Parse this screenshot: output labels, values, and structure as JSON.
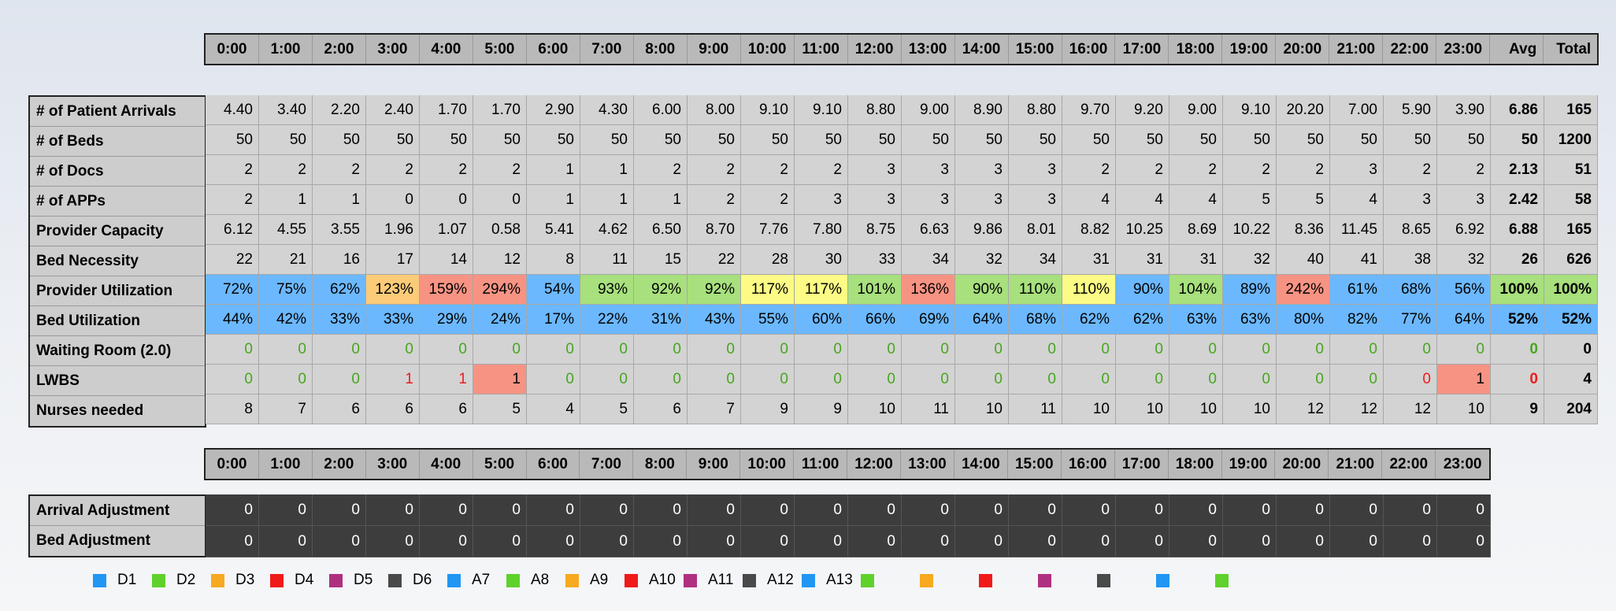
{
  "hours": [
    "0:00",
    "1:00",
    "2:00",
    "3:00",
    "4:00",
    "5:00",
    "6:00",
    "7:00",
    "8:00",
    "9:00",
    "10:00",
    "11:00",
    "12:00",
    "13:00",
    "14:00",
    "15:00",
    "16:00",
    "17:00",
    "18:00",
    "19:00",
    "20:00",
    "21:00",
    "22:00",
    "23:00"
  ],
  "summary_headers": {
    "avg": "Avg",
    "total": "Total"
  },
  "main_table": {
    "rows": [
      {
        "label": "# of Patient Arrivals",
        "values": [
          "4.40",
          "3.40",
          "2.20",
          "2.40",
          "1.70",
          "1.70",
          "2.90",
          "4.30",
          "6.00",
          "8.00",
          "9.10",
          "9.10",
          "8.80",
          "9.00",
          "8.90",
          "8.80",
          "9.70",
          "9.20",
          "9.00",
          "9.10",
          "20.20",
          "7.00",
          "5.90",
          "3.90"
        ],
        "avg": "6.86",
        "total": "165"
      },
      {
        "label": "# of Beds",
        "values": [
          "50",
          "50",
          "50",
          "50",
          "50",
          "50",
          "50",
          "50",
          "50",
          "50",
          "50",
          "50",
          "50",
          "50",
          "50",
          "50",
          "50",
          "50",
          "50",
          "50",
          "50",
          "50",
          "50",
          "50"
        ],
        "avg": "50",
        "total": "1200"
      },
      {
        "label": "# of Docs",
        "values": [
          "2",
          "2",
          "2",
          "2",
          "2",
          "2",
          "1",
          "1",
          "2",
          "2",
          "2",
          "2",
          "3",
          "3",
          "3",
          "3",
          "2",
          "2",
          "2",
          "2",
          "2",
          "3",
          "2",
          "2"
        ],
        "avg": "2.13",
        "total": "51"
      },
      {
        "label": "# of APPs",
        "values": [
          "2",
          "1",
          "1",
          "0",
          "0",
          "0",
          "1",
          "1",
          "1",
          "2",
          "2",
          "3",
          "3",
          "3",
          "3",
          "3",
          "4",
          "4",
          "4",
          "5",
          "5",
          "4",
          "3",
          "3"
        ],
        "avg": "2.42",
        "total": "58"
      },
      {
        "label": "Provider Capacity",
        "values": [
          "6.12",
          "4.55",
          "3.55",
          "1.96",
          "1.07",
          "0.58",
          "5.41",
          "4.62",
          "6.50",
          "8.70",
          "7.76",
          "7.80",
          "8.75",
          "6.63",
          "9.86",
          "8.01",
          "8.82",
          "10.25",
          "8.69",
          "10.22",
          "8.36",
          "11.45",
          "8.65",
          "6.92"
        ],
        "avg": "6.88",
        "total": "165"
      },
      {
        "label": "Bed Necessity",
        "values": [
          "22",
          "21",
          "16",
          "17",
          "14",
          "12",
          "8",
          "11",
          "15",
          "22",
          "28",
          "30",
          "33",
          "34",
          "32",
          "34",
          "31",
          "31",
          "31",
          "32",
          "40",
          "41",
          "38",
          "32"
        ],
        "avg": "26",
        "total": "626"
      },
      {
        "label": "Provider Utilization",
        "values": [
          "72%",
          "75%",
          "62%",
          "123%",
          "159%",
          "294%",
          "54%",
          "93%",
          "92%",
          "92%",
          "117%",
          "117%",
          "101%",
          "136%",
          "90%",
          "110%",
          "110%",
          "90%",
          "104%",
          "89%",
          "242%",
          "61%",
          "68%",
          "56%"
        ],
        "avg": "100%",
        "total": "100%",
        "colors": [
          "blue",
          "blue",
          "blue",
          "orange",
          "red",
          "red",
          "blue",
          "green",
          "green",
          "green",
          "yellow",
          "yellow",
          "green",
          "red",
          "green",
          "green",
          "yellow",
          "blue",
          "green",
          "blue",
          "red",
          "blue",
          "blue",
          "blue"
        ],
        "avg_color": "green",
        "total_color": "green"
      },
      {
        "label": "Bed Utilization",
        "values": [
          "44%",
          "42%",
          "33%",
          "33%",
          "29%",
          "24%",
          "17%",
          "22%",
          "31%",
          "43%",
          "55%",
          "60%",
          "66%",
          "69%",
          "64%",
          "68%",
          "62%",
          "62%",
          "63%",
          "63%",
          "80%",
          "82%",
          "77%",
          "64%"
        ],
        "avg": "52%",
        "total": "52%",
        "colors": [
          "blue",
          "blue",
          "blue",
          "blue",
          "blue",
          "blue",
          "blue",
          "blue",
          "blue",
          "blue",
          "blue",
          "blue",
          "blue",
          "blue",
          "blue",
          "blue",
          "blue",
          "blue",
          "blue",
          "blue",
          "blue",
          "blue",
          "blue",
          "blue"
        ],
        "avg_color": "blue",
        "total_color": "blue"
      },
      {
        "label": "Waiting Room (2.0)",
        "values": [
          "0",
          "0",
          "0",
          "0",
          "0",
          "0",
          "0",
          "0",
          "0",
          "0",
          "0",
          "0",
          "0",
          "0",
          "0",
          "0",
          "0",
          "0",
          "0",
          "0",
          "0",
          "0",
          "0",
          "0"
        ],
        "avg": "0",
        "total": "0",
        "text_colors": [
          "tgreen",
          "tgreen",
          "tgreen",
          "tgreen",
          "tgreen",
          "tgreen",
          "tgreen",
          "tgreen",
          "tgreen",
          "tgreen",
          "tgreen",
          "tgreen",
          "tgreen",
          "tgreen",
          "tgreen",
          "tgreen",
          "tgreen",
          "tgreen",
          "tgreen",
          "tgreen",
          "tgreen",
          "tgreen",
          "tgreen",
          "tgreen"
        ],
        "avg_text": "tgreen"
      },
      {
        "label": "LWBS",
        "values": [
          "0",
          "0",
          "0",
          "1",
          "1",
          "1",
          "0",
          "0",
          "0",
          "0",
          "0",
          "0",
          "0",
          "0",
          "0",
          "0",
          "0",
          "0",
          "0",
          "0",
          "0",
          "0",
          "0",
          "1"
        ],
        "avg": "0",
        "total": "4",
        "text_colors": [
          "tgreen",
          "tgreen",
          "tgreen",
          "tred",
          "tred",
          "",
          "tgreen",
          "tgreen",
          "tgreen",
          "tgreen",
          "tgreen",
          "tgreen",
          "tgreen",
          "tgreen",
          "tgreen",
          "tgreen",
          "tgreen",
          "tgreen",
          "tgreen",
          "tgreen",
          "tgreen",
          "tgreen",
          "tred",
          ""
        ],
        "colors": [
          "",
          "",
          "",
          "",
          "",
          "red",
          "",
          "",
          "",
          "",
          "",
          "",
          "",
          "",
          "",
          "",
          "",
          "",
          "",
          "",
          "",
          "",
          "",
          "red"
        ],
        "avg_text": "tred"
      },
      {
        "label": "Nurses needed",
        "values": [
          "8",
          "7",
          "6",
          "6",
          "6",
          "5",
          "4",
          "5",
          "6",
          "7",
          "9",
          "9",
          "10",
          "11",
          "10",
          "11",
          "10",
          "10",
          "10",
          "10",
          "12",
          "12",
          "12",
          "10"
        ],
        "avg": "9",
        "total": "204"
      }
    ]
  },
  "adjust_table": {
    "rows": [
      {
        "label": "Arrival Adjustment",
        "values": [
          "0",
          "0",
          "0",
          "0",
          "0",
          "0",
          "0",
          "0",
          "0",
          "0",
          "0",
          "0",
          "0",
          "0",
          "0",
          "0",
          "0",
          "0",
          "0",
          "0",
          "0",
          "0",
          "0",
          "0"
        ]
      },
      {
        "label": "Bed Adjustment",
        "values": [
          "0",
          "0",
          "0",
          "0",
          "0",
          "0",
          "0",
          "0",
          "0",
          "0",
          "0",
          "0",
          "0",
          "0",
          "0",
          "0",
          "0",
          "0",
          "0",
          "0",
          "0",
          "0",
          "0",
          "0"
        ]
      }
    ]
  },
  "legend": [
    {
      "label": "D1",
      "color": "#2196f3"
    },
    {
      "label": "D2",
      "color": "#5fd12b"
    },
    {
      "label": "D3",
      "color": "#f7a920"
    },
    {
      "label": "D4",
      "color": "#f01a1a"
    },
    {
      "label": "D5",
      "color": "#b03080"
    },
    {
      "label": "D6",
      "color": "#4a4a4a"
    },
    {
      "label": "A7",
      "color": "#2196f3"
    },
    {
      "label": "A8",
      "color": "#5fd12b"
    },
    {
      "label": "A9",
      "color": "#f7a920"
    },
    {
      "label": "A10",
      "color": "#f01a1a"
    },
    {
      "label": "A11",
      "color": "#b03080"
    },
    {
      "label": "A12",
      "color": "#4a4a4a"
    },
    {
      "label": "A13",
      "color": "#2196f3"
    },
    {
      "label": "",
      "color": "#5fd12b"
    },
    {
      "label": "",
      "color": "#f7a920"
    },
    {
      "label": "",
      "color": "#f01a1a"
    },
    {
      "label": "",
      "color": "#b03080"
    },
    {
      "label": "",
      "color": "#4a4a4a"
    },
    {
      "label": "",
      "color": "#2196f3"
    },
    {
      "label": "",
      "color": "#5fd12b"
    }
  ]
}
